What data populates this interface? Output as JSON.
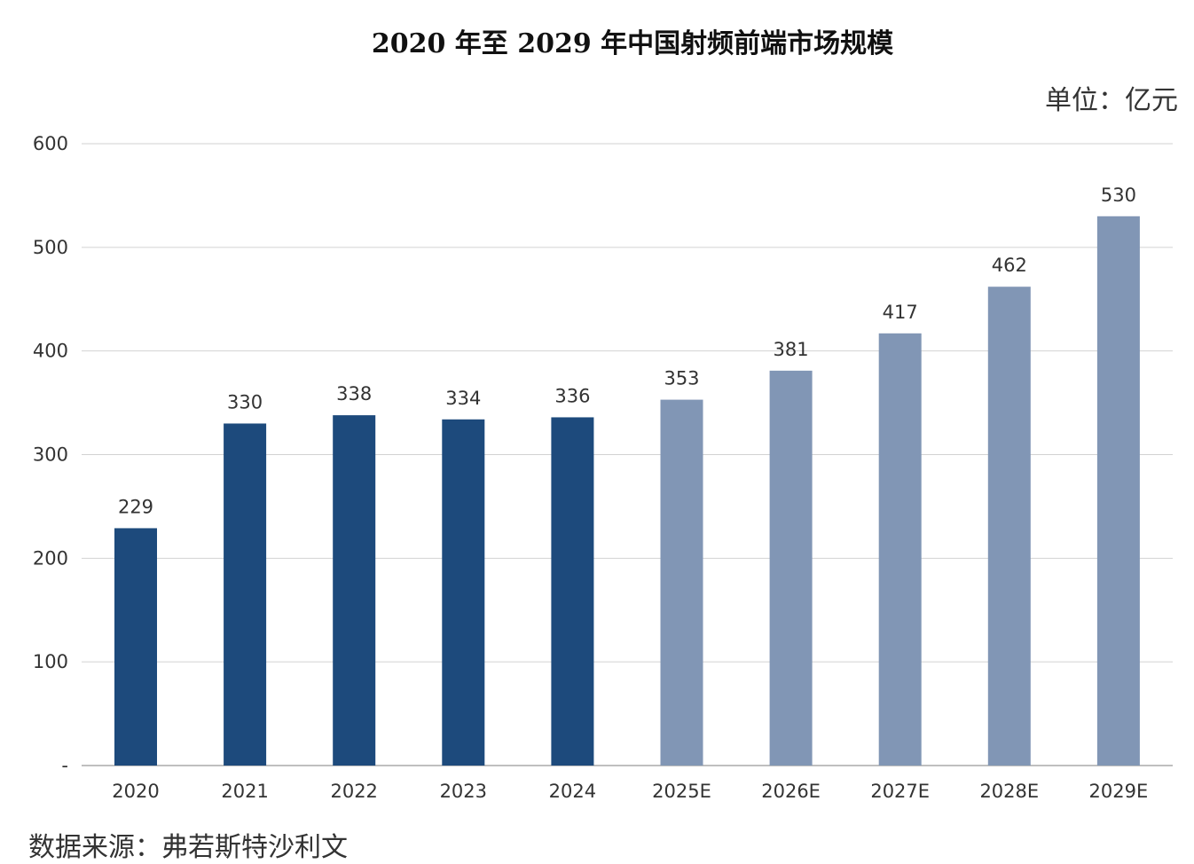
{
  "header": {
    "title": "2020 年至 2029 年中国射频前端市场规模",
    "unit": "单位：亿元"
  },
  "footer": {
    "source": "数据来源：弗若斯特沙利文"
  },
  "colors": {
    "actual": "#1d4a7c",
    "forecast": "#8196b5",
    "grid": "#d2d2d2",
    "axis": "#aaaaaa"
  },
  "chart_data": {
    "type": "bar",
    "title": "2020 年至 2029 年中国射频前端市场规模",
    "xlabel": "",
    "ylabel": "",
    "unit": "单位：亿元",
    "categories": [
      "2020",
      "2021",
      "2022",
      "2023",
      "2024",
      "2025E",
      "2026E",
      "2027E",
      "2028E",
      "2029E"
    ],
    "values": [
      229,
      330,
      338,
      334,
      336,
      353,
      381,
      417,
      462,
      530
    ],
    "forecast": [
      false,
      false,
      false,
      false,
      false,
      true,
      true,
      true,
      true,
      true
    ],
    "data_labels": [
      "229",
      "330",
      "338",
      "334",
      "336",
      "353",
      "381",
      "417",
      "462",
      "530"
    ],
    "ylim": [
      0,
      600
    ],
    "yticks": [
      0,
      100,
      200,
      300,
      400,
      500,
      600
    ],
    "ytick_labels": [
      "-",
      "100",
      "200",
      "300",
      "400",
      "500",
      "600"
    ],
    "grid": true,
    "legend": "none"
  }
}
